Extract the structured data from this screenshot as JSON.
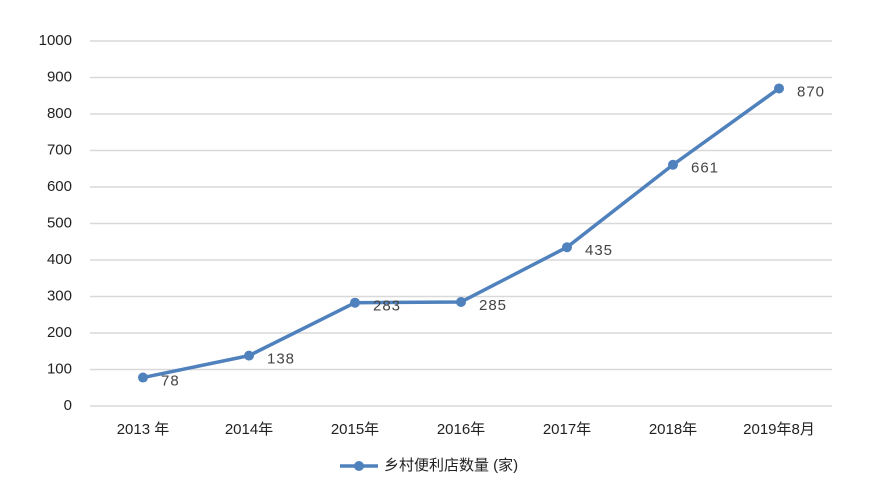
{
  "chart_data": {
    "type": "line",
    "categories": [
      "2013 年",
      "2014年",
      "2015年",
      "2016年",
      "2017年",
      "2018年",
      "2019年8月"
    ],
    "series": [
      {
        "name": "乡村便利店数量 (家)",
        "color": "#4f81bd",
        "values": [
          78,
          138,
          283,
          285,
          435,
          661,
          870
        ]
      }
    ],
    "ylim": [
      0,
      1000
    ],
    "yticks": [
      0,
      100,
      200,
      300,
      400,
      500,
      600,
      700,
      800,
      900,
      1000
    ],
    "grid": true,
    "legend": "bottom",
    "data_labels": true
  }
}
